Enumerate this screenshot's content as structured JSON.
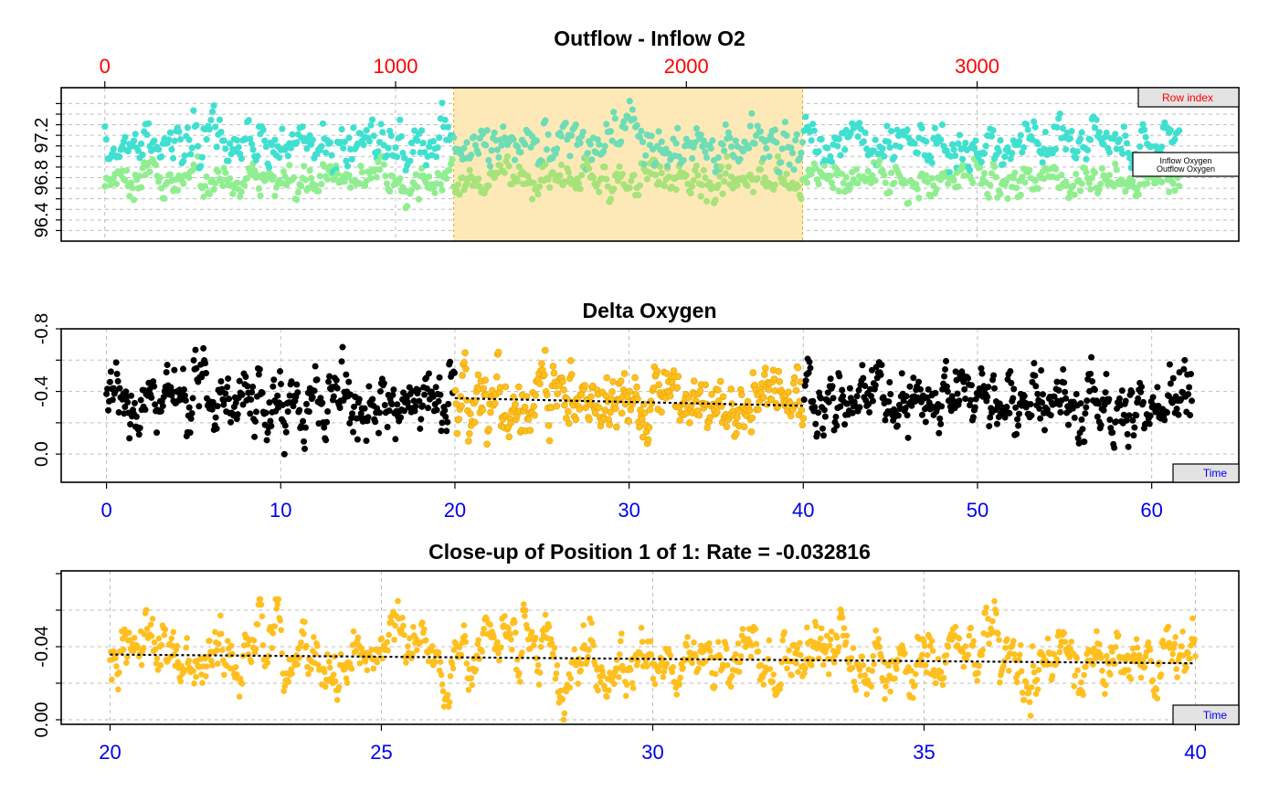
{
  "colors": {
    "inflow": "#40e0d0",
    "outflow": "#90ee90",
    "delta": "#000000",
    "subset": "#ffbf1f",
    "subset_outline": "#e6a400",
    "highlight_fill": "#fde9b8",
    "row_axis": "#ff0000",
    "time_axis": "#0000ee",
    "fit_line": "#000000"
  },
  "chart_data": [
    {
      "type": "scatter",
      "title": "Outflow - Inflow O2",
      "xlabel": "",
      "ylabel": "",
      "x_axis": "Row index",
      "top_ticks": [
        "0",
        "1000",
        "2000",
        "3000"
      ],
      "xlim": [
        -150,
        3900
      ],
      "y_ticks": [
        "96.4",
        "96.8",
        "97.2"
      ],
      "ylim": [
        96.2,
        97.65
      ],
      "grid": true,
      "highlight_range": [
        1200,
        2400
      ],
      "row_count": 3700,
      "series": [
        {
          "name": "Inflow Oxygen",
          "mean": 97.13,
          "spread": 0.11,
          "range": [
            96.85,
            97.55
          ]
        },
        {
          "name": "Outflow Oxygen",
          "mean": 96.78,
          "spread": 0.09,
          "range": [
            96.4,
            97.0
          ]
        }
      ],
      "legend_position": "right"
    },
    {
      "type": "scatter",
      "title": "Delta Oxygen",
      "xlabel": "",
      "ylabel": "",
      "x_axis": "Time",
      "x_ticks": [
        "0",
        "10",
        "20",
        "30",
        "40",
        "50",
        "60"
      ],
      "xlim": [
        -2.6,
        65
      ],
      "y_ticks": [
        "0.0",
        "-0.4",
        "-0.8"
      ],
      "ylim": [
        0.18,
        -0.8
      ],
      "y_inverted": true,
      "grid": true,
      "subset_range": [
        20,
        40
      ],
      "series": [
        {
          "name": "",
          "mean": -0.33,
          "spread": 0.11,
          "range": [
            -0.7,
            0.08
          ]
        }
      ],
      "fit_line": {
        "x": [
          20,
          40
        ],
        "y": [
          -0.357,
          -0.309
        ]
      }
    },
    {
      "type": "scatter",
      "title": "Close-up of Position 1 of 1: Rate =  -0.032816",
      "xlabel": "",
      "ylabel": "",
      "x_axis": "Time",
      "x_ticks": [
        "20",
        "25",
        "30",
        "35",
        "40"
      ],
      "xlim": [
        19.1,
        40.8
      ],
      "y_ticks": [
        "0.00",
        "-0.04"
      ],
      "ylim": [
        0.0025,
        -0.0815
      ],
      "y_inverted": true,
      "grid": true,
      "series": [
        {
          "name": "",
          "mean": -0.034,
          "spread": 0.012,
          "range": [
            -0.066,
            0.0
          ]
        }
      ],
      "fit_line": {
        "x": [
          20,
          40
        ],
        "y": [
          -0.0357,
          -0.0309
        ]
      },
      "rate": -0.032816
    }
  ]
}
